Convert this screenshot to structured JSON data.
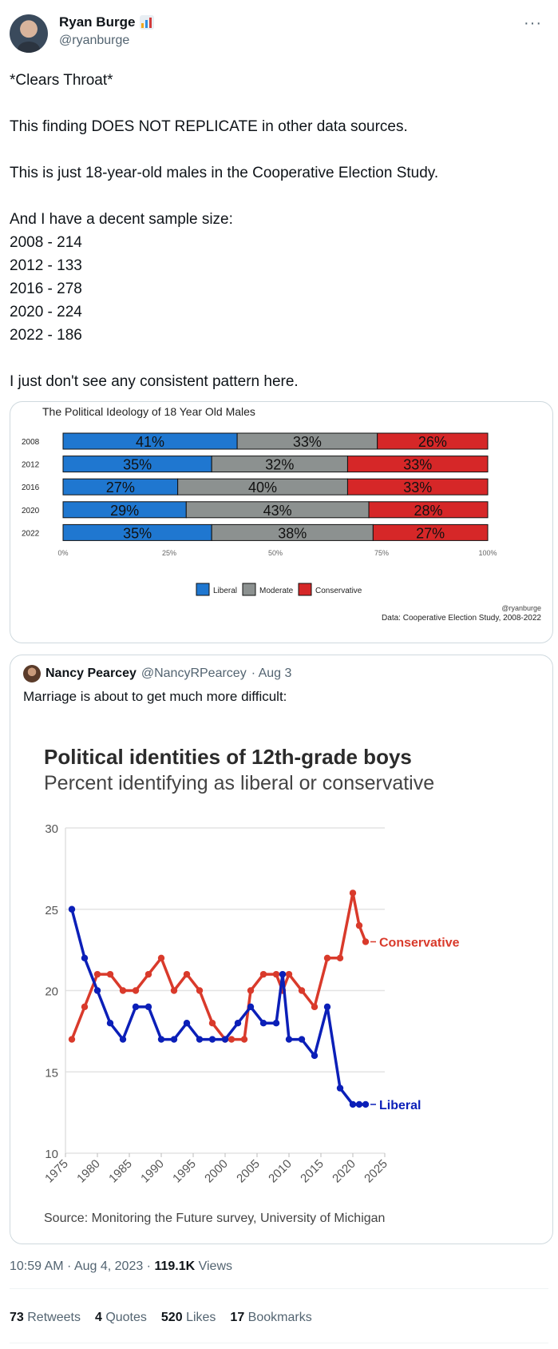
{
  "author": {
    "name": "Ryan Burge",
    "handle": "@ryanburge",
    "badge_icon": "bar-chart-emoji",
    "more_label": "···"
  },
  "tweet": {
    "text": "*Clears Throat*\n\nThis finding DOES NOT REPLICATE in other data sources.\n\nThis is just 18-year-old males in the Cooperative Election Study.\n\nAnd I have a decent sample size:\n2008 - 214\n2012 - 133\n2016 - 278\n2020 - 224\n2022 - 186\n\nI just don't see any consistent pattern here."
  },
  "chart1_credit": "@ryanburge",
  "chart1_source": "Data: Cooperative Election Study, 2008-2022",
  "quote": {
    "name": "Nancy Pearcey",
    "handle": "@NancyRPearcey",
    "date": "· Aug 3",
    "text": "Marriage is about to get much more difficult:"
  },
  "chart2_subtitle": "Percent identifying as liberal or conservative",
  "chart2_source": "Source: Monitoring the Future survey, University of Michigan",
  "meta": {
    "time": "10:59 AM · Aug 4, 2023 · ",
    "views_count": "119.1K",
    "views_label": " Views"
  },
  "stats": [
    {
      "count": "73",
      "label": "Retweets"
    },
    {
      "count": "4",
      "label": "Quotes"
    },
    {
      "count": "520",
      "label": "Likes"
    },
    {
      "count": "17",
      "label": "Bookmarks"
    }
  ],
  "chart_data": [
    {
      "type": "bar",
      "orientation": "horizontal-stacked-100",
      "title": "The Political Ideology of 18 Year Old Males",
      "categories": [
        "2008",
        "2012",
        "2016",
        "2020",
        "2022"
      ],
      "series": [
        {
          "name": "Liberal",
          "color": "#1f77d0",
          "values": [
            41,
            35,
            27,
            29,
            35
          ],
          "labels": [
            "41%",
            "35%",
            "27%",
            "29%",
            "35%"
          ]
        },
        {
          "name": "Moderate",
          "color": "#8c9190",
          "values": [
            33,
            32,
            40,
            43,
            38
          ],
          "labels": [
            "33%",
            "32%",
            "40%",
            "43%",
            "38%"
          ]
        },
        {
          "name": "Conservative",
          "color": "#d62728",
          "values": [
            26,
            33,
            33,
            28,
            27
          ],
          "labels": [
            "26%",
            "33%",
            "33%",
            "28%",
            "27%"
          ]
        }
      ],
      "xlim": [
        0,
        100
      ],
      "xticks": [
        "0%",
        "25%",
        "50%",
        "75%",
        "100%"
      ],
      "legend": "bottom",
      "grid": false
    },
    {
      "type": "line",
      "title": "Political identities of 12th-grade boys",
      "xlim": [
        1975,
        2025
      ],
      "ylim": [
        10,
        30
      ],
      "xticks": [
        "1975",
        "1980",
        "1985",
        "1990",
        "1995",
        "2000",
        "2005",
        "2010",
        "2015",
        "2020",
        "2025"
      ],
      "yticks": [
        "10",
        "15",
        "20",
        "25",
        "30"
      ],
      "grid": true,
      "legend": "direct-labels",
      "series": [
        {
          "name": "Conservative",
          "color": "#d93a2b",
          "points": [
            [
              1976,
              17
            ],
            [
              1978,
              19
            ],
            [
              1980,
              21
            ],
            [
              1982,
              21
            ],
            [
              1984,
              20
            ],
            [
              1986,
              20
            ],
            [
              1988,
              21
            ],
            [
              1990,
              22
            ],
            [
              1992,
              20
            ],
            [
              1994,
              21
            ],
            [
              1996,
              20
            ],
            [
              1998,
              18
            ],
            [
              2000,
              17
            ],
            [
              2001,
              17
            ],
            [
              2003,
              17
            ],
            [
              2004,
              20
            ],
            [
              2006,
              21
            ],
            [
              2008,
              21
            ],
            [
              2009,
              20
            ],
            [
              2010,
              21
            ],
            [
              2012,
              20
            ],
            [
              2014,
              19
            ],
            [
              2016,
              22
            ],
            [
              2018,
              22
            ],
            [
              2020,
              26
            ],
            [
              2021,
              24
            ],
            [
              2022,
              23
            ]
          ]
        },
        {
          "name": "Liberal",
          "color": "#0b1fb8",
          "points": [
            [
              1976,
              25
            ],
            [
              1978,
              22
            ],
            [
              1980,
              20
            ],
            [
              1982,
              18
            ],
            [
              1984,
              17
            ],
            [
              1986,
              19
            ],
            [
              1988,
              19
            ],
            [
              1990,
              17
            ],
            [
              1992,
              17
            ],
            [
              1994,
              18
            ],
            [
              1996,
              17
            ],
            [
              1998,
              17
            ],
            [
              2000,
              17
            ],
            [
              2002,
              18
            ],
            [
              2004,
              19
            ],
            [
              2006,
              18
            ],
            [
              2008,
              18
            ],
            [
              2009,
              21
            ],
            [
              2010,
              17
            ],
            [
              2012,
              17
            ],
            [
              2014,
              16
            ],
            [
              2016,
              19
            ],
            [
              2018,
              14
            ],
            [
              2020,
              13
            ],
            [
              2021,
              13
            ],
            [
              2022,
              13
            ]
          ]
        }
      ]
    }
  ]
}
